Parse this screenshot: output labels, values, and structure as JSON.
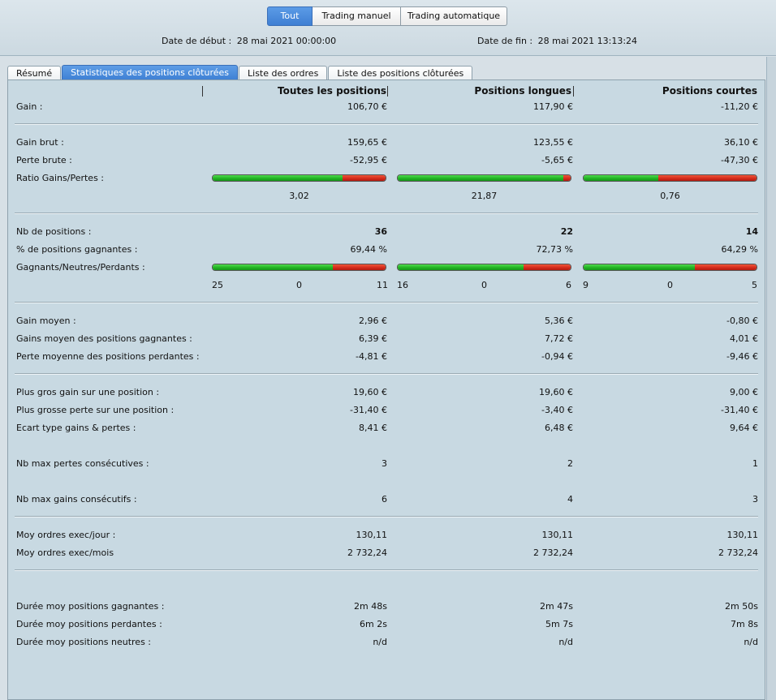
{
  "mode_buttons": [
    "Tout",
    "Trading manuel",
    "Trading automatique"
  ],
  "dates": {
    "start_label": "Date de début :",
    "start_value": "28 mai 2021 00:00:00",
    "end_label": "Date de fin :",
    "end_value": "28 mai 2021 13:13:24"
  },
  "tabs": [
    "Résumé",
    "Statistiques des positions clôturées",
    "Liste des ordres",
    "Liste des positions clôturées"
  ],
  "columns": [
    "Toutes les positions",
    "Positions longues",
    "Positions courtes"
  ],
  "rows": {
    "gain": {
      "label": "Gain :",
      "v": [
        "106,70 €",
        "117,90 €",
        "-11,20 €"
      ]
    },
    "gain_brut": {
      "label": "Gain brut :",
      "v": [
        "159,65 €",
        "123,55 €",
        "36,10 €"
      ]
    },
    "perte_brute": {
      "label": "Perte brute :",
      "v": [
        "-52,95 €",
        "-5,65 €",
        "-47,30 €"
      ]
    },
    "ratio": {
      "label": "Ratio Gains/Pertes :",
      "v": [
        "3,02",
        "21,87",
        "0,76"
      ],
      "green_fraction": [
        0.751,
        0.956,
        0.433
      ]
    },
    "nb_positions": {
      "label": "Nb de positions :",
      "v": [
        "36",
        "22",
        "14"
      ]
    },
    "pct_gagnantes": {
      "label": "% de positions gagnantes :",
      "v": [
        "69,44 %",
        "72,73 %",
        "64,29 %"
      ]
    },
    "gnp": {
      "label": "Gagnants/Neutres/Perdants :",
      "win": [
        "25",
        "16",
        "9"
      ],
      "neutral": [
        "0",
        "0",
        "0"
      ],
      "loss": [
        "11",
        "6",
        "5"
      ],
      "green_fraction": [
        0.694,
        0.727,
        0.643
      ]
    },
    "gain_moyen": {
      "label": "Gain moyen :",
      "v": [
        "2,96 €",
        "5,36 €",
        "-0,80 €"
      ]
    },
    "gains_moyen_gagnantes": {
      "label": "Gains moyen des positions gagnantes :",
      "v": [
        "6,39 €",
        "7,72 €",
        "4,01 €"
      ]
    },
    "perte_moyenne_perdantes": {
      "label": "Perte moyenne des positions perdantes :",
      "v": [
        "-4,81 €",
        "-0,94 €",
        "-9,46 €"
      ]
    },
    "plus_gros_gain": {
      "label": "Plus gros gain sur une position :",
      "v": [
        "19,60 €",
        "19,60 €",
        "9,00 €"
      ]
    },
    "plus_grosse_perte": {
      "label": "Plus grosse perte sur une position :",
      "v": [
        "-31,40 €",
        "-3,40 €",
        "-31,40 €"
      ]
    },
    "ecart_type": {
      "label": "Ecart type gains & pertes :",
      "v": [
        "8,41 €",
        "6,48 €",
        "9,64 €"
      ]
    },
    "max_pertes_consec": {
      "label": "Nb max pertes consécutives :",
      "v": [
        "3",
        "2",
        "1"
      ]
    },
    "max_gains_consec": {
      "label": "Nb max gains consécutifs :",
      "v": [
        "6",
        "4",
        "3"
      ]
    },
    "ordres_jour": {
      "label": "Moy ordres exec/jour :",
      "v": [
        "130,11",
        "130,11",
        "130,11"
      ]
    },
    "ordres_mois": {
      "label": "Moy ordres exec/mois",
      "v": [
        "2 732,24",
        "2 732,24",
        "2 732,24"
      ]
    },
    "duree_gagnantes": {
      "label": "Durée moy positions gagnantes :",
      "v": [
        "2m 48s",
        "2m 47s",
        "2m 50s"
      ]
    },
    "duree_perdantes": {
      "label": "Durée moy positions perdantes :",
      "v": [
        "6m 2s",
        "5m 7s",
        "7m 8s"
      ]
    },
    "duree_neutres": {
      "label": "Durée moy positions neutres :",
      "v": [
        "n/d",
        "n/d",
        "n/d"
      ]
    }
  }
}
